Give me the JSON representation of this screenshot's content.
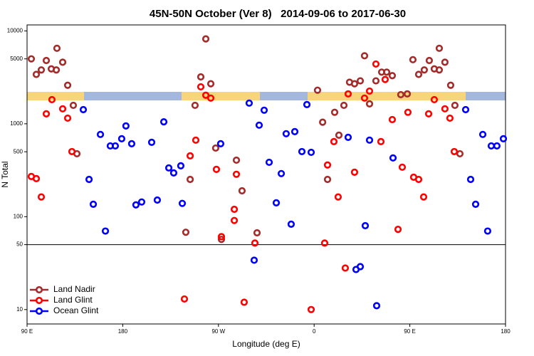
{
  "chart_data": {
    "type": "scatter",
    "title": "45N-50N October (Ver 8)   2014-09-06 to 2017-06-30",
    "xlabel": "Longitude (deg E)",
    "ylabel": "N Total",
    "log_y": true,
    "legend": "bottom-left",
    "hline": 50,
    "xlim": [
      90,
      540
    ],
    "xticks": [
      {
        "value": 90,
        "label": "90 E"
      },
      180,
      {
        "value": 270,
        "label": "90 W"
      },
      {
        "value": 360,
        "label": "0"
      },
      {
        "value": 450,
        "label": "90 E"
      },
      {
        "value": 540,
        "label": "180"
      }
    ],
    "ylim": [
      7,
      11600
    ],
    "yticks": [
      10,
      50,
      100,
      500,
      1000,
      5000,
      10000
    ],
    "series": [
      {
        "name": "Land Nadir",
        "color": "#a52a2a",
        "x": [
          94,
          98.7,
          103.4,
          108.1,
          112.8,
          118.1,
          117.5,
          123.5,
          128.2,
          133.5,
          136.9,
          239.3,
          243.4,
          248,
          253.4,
          258.1,
          262.8,
          267.4,
          272.8,
          286.9,
          292.2,
          306.3,
          363.2,
          368,
          372.6,
          379.3,
          383.3,
          388,
          393.3,
          398,
          403.4,
          407.4,
          412.1,
          418.1,
          423.5,
          428.2,
          433.5,
          441.5,
          447.6,
          452.9,
          458.3,
          463.6,
          468.3,
          473,
          477.7,
          477.7,
          483,
          488.4,
          492.4,
          497.1
        ],
        "values": [
          5000,
          3400,
          3800,
          4800,
          3900,
          6500,
          3800,
          4600,
          2600,
          1580,
          476,
          68,
          252,
          1580,
          3200,
          8200,
          2700,
          548,
          57,
          406,
          190,
          67,
          2300,
          1040,
          252,
          1330,
          754,
          1580,
          2800,
          2700,
          2900,
          5400,
          1640,
          2900,
          3600,
          3600,
          3300,
          2060,
          2100,
          4900,
          3400,
          3800,
          4800,
          3900,
          6500,
          3800,
          4600,
          2600,
          1580,
          476
        ]
      },
      {
        "name": "Land Glint",
        "color": "#ff0000",
        "x": [
          94,
          98.7,
          103.4,
          108.1,
          113.4,
          123.5,
          128.2,
          132.2,
          238,
          243.4,
          248.7,
          253.4,
          258.1,
          262.8,
          268.1,
          272.8,
          284.9,
          284.9,
          286.9,
          294.2,
          304.3,
          357.2,
          369.9,
          372.6,
          378.6,
          382.6,
          389.3,
          392,
          398,
          407.4,
          412.1,
          418.1,
          422.8,
          426.8,
          433.5,
          438.9,
          442.9,
          448.2,
          453.6,
          458.3,
          463,
          467.7,
          473,
          483,
          487.7,
          491.8
        ],
        "values": [
          271,
          257,
          163,
          1280,
          1820,
          1450,
          1150,
          502,
          13,
          452,
          667,
          2500,
          2030,
          1890,
          323,
          61,
          120,
          91,
          286,
          12,
          52,
          10,
          52,
          360,
          643,
          163,
          28,
          2100,
          301,
          1890,
          2250,
          4400,
          643,
          3000,
          1110,
          73,
          341,
          1330,
          266,
          252,
          163,
          1280,
          1820,
          1450,
          1150,
          502
        ]
      },
      {
        "name": "Ocean Glint",
        "color": "#0000ff",
        "x": [
          142.9,
          148.3,
          152.3,
          159,
          163.7,
          168.3,
          173,
          179,
          183,
          188.4,
          192.4,
          197.8,
          207.2,
          212.5,
          218.6,
          223.3,
          227.9,
          234.6,
          236,
          272.1,
          298.9,
          303.6,
          308.3,
          313,
          317.7,
          324.4,
          329.1,
          333.7,
          338.4,
          341.8,
          348.5,
          353.2,
          357.2,
          392,
          399.4,
          403.4,
          408.1,
          412.1,
          418.8,
          434.2,
          502.5,
          507.2,
          511.9,
          518.6,
          523.2,
          526.6,
          531.9,
          538
        ],
        "values": [
          1420,
          252,
          136,
          768,
          70,
          578,
          578,
          690,
          948,
          610,
          134,
          144,
          632,
          151,
          1050,
          335,
          296,
          353,
          139,
          610,
          1670,
          34,
          966,
          1400,
          385,
          141,
          291,
          782,
          83,
          824,
          502,
          1610,
          493,
          715,
          27,
          29,
          80,
          667,
          11,
          429,
          1420,
          252,
          136,
          768,
          70,
          578,
          578,
          690
        ]
      }
    ]
  }
}
